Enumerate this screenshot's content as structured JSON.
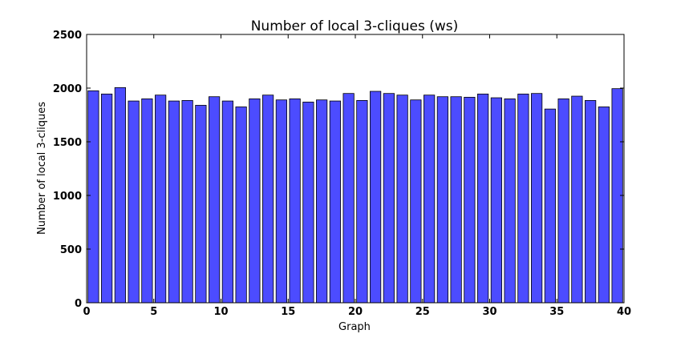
{
  "chart_data": {
    "type": "bar",
    "title": "Number of local 3-cliques (ws)",
    "xlabel": "Graph",
    "ylabel": "Number of local 3-cliques",
    "xlim": [
      0,
      40
    ],
    "ylim": [
      0,
      2500
    ],
    "bar_width": 0.8,
    "bar_color": "#4c4cff",
    "grid": false,
    "x": [
      0,
      1,
      2,
      3,
      4,
      5,
      6,
      7,
      8,
      9,
      10,
      11,
      12,
      13,
      14,
      15,
      16,
      17,
      18,
      19,
      20,
      21,
      22,
      23,
      24,
      25,
      26,
      27,
      28,
      29,
      30,
      31,
      32,
      33,
      34,
      35,
      36,
      37,
      38,
      39
    ],
    "values": [
      1975,
      1945,
      2005,
      1880,
      1900,
      1935,
      1880,
      1885,
      1840,
      1920,
      1880,
      1825,
      1900,
      1935,
      1890,
      1900,
      1870,
      1890,
      1880,
      1950,
      1885,
      1970,
      1950,
      1935,
      1890,
      1935,
      1920,
      1920,
      1915,
      1945,
      1910,
      1900,
      1945,
      1950,
      1805,
      1900,
      1925,
      1885,
      1825,
      1995
    ],
    "xticks": [
      "0",
      "5",
      "10",
      "15",
      "20",
      "25",
      "30",
      "35",
      "40"
    ],
    "yticks": [
      "0",
      "500",
      "1000",
      "1500",
      "2000",
      "2500"
    ]
  }
}
